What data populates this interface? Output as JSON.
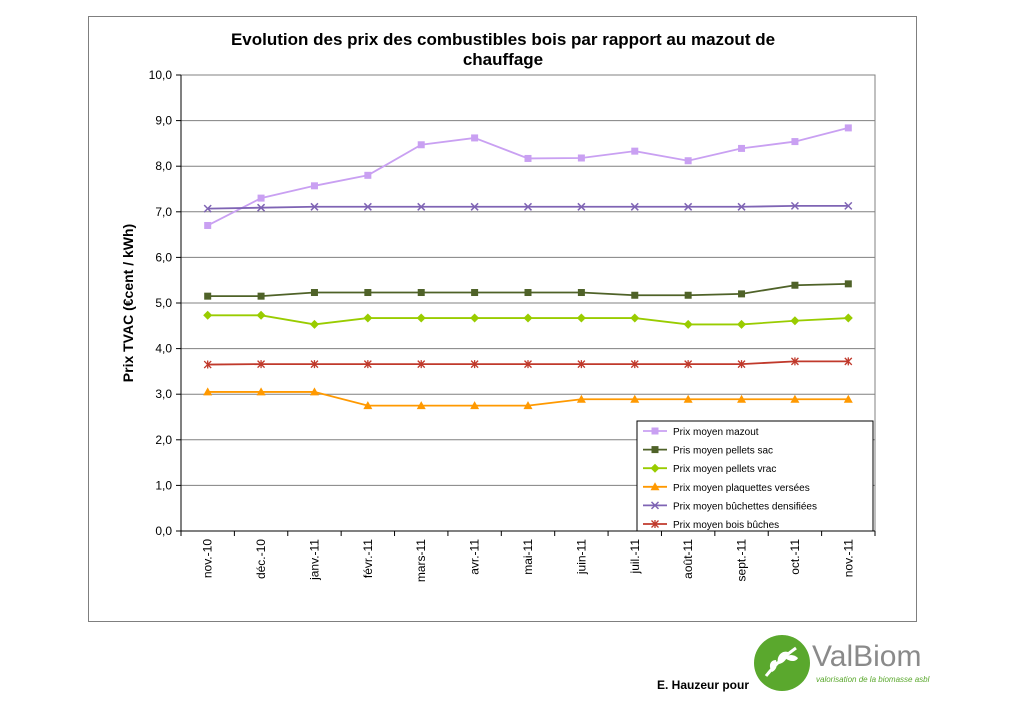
{
  "chart_data": {
    "type": "line",
    "title": "Evolution des prix des combustibles bois par rapport au mazout de chauffage",
    "title_lines": [
      "Evolution des prix des combustibles bois par rapport au mazout de",
      "chauffage"
    ],
    "xlabel": "",
    "ylabel": "Prix TVAC (€cent / kWh)",
    "ylim": [
      0,
      10
    ],
    "yticks": [
      "0,0",
      "1,0",
      "2,0",
      "3,0",
      "4,0",
      "5,0",
      "6,0",
      "7,0",
      "8,0",
      "9,0",
      "10,0"
    ],
    "categories": [
      "nov.-10",
      "déc.-10",
      "janv.-11",
      "févr.-11",
      "mars-11",
      "avr.-11",
      "mai-11",
      "juin-11",
      "juil.-11",
      "août-11",
      "sept.-11",
      "oct.-11",
      "nov.-11"
    ],
    "grid": true,
    "legend_position": "bottom-right",
    "series": [
      {
        "name": "Prix moyen mazout",
        "color": "#c9a0f2",
        "marker": "square",
        "values": [
          6.7,
          7.3,
          7.57,
          7.8,
          8.47,
          8.62,
          8.17,
          8.18,
          8.33,
          8.12,
          8.39,
          8.54,
          8.84
        ]
      },
      {
        "name": "Pris moyen pellets sac",
        "color": "#4f6228",
        "marker": "square",
        "values": [
          5.15,
          5.15,
          5.23,
          5.23,
          5.23,
          5.23,
          5.23,
          5.23,
          5.17,
          5.17,
          5.2,
          5.39,
          5.42
        ]
      },
      {
        "name": "Prix moyen pellets vrac",
        "color": "#99cc00",
        "marker": "diamond",
        "values": [
          4.73,
          4.73,
          4.53,
          4.67,
          4.67,
          4.67,
          4.67,
          4.67,
          4.67,
          4.53,
          4.53,
          4.61,
          4.67
        ]
      },
      {
        "name": "Prix moyen plaquettes versées",
        "color": "#ff9900",
        "marker": "triangle",
        "values": [
          3.05,
          3.05,
          3.05,
          2.75,
          2.75,
          2.75,
          2.75,
          2.89,
          2.89,
          2.89,
          2.89,
          2.89,
          2.89
        ]
      },
      {
        "name": "Prix moyen bûchettes densifiées",
        "color": "#7f64b4",
        "marker": "x",
        "values": [
          7.07,
          7.09,
          7.11,
          7.11,
          7.11,
          7.11,
          7.11,
          7.11,
          7.11,
          7.11,
          7.11,
          7.13,
          7.13
        ]
      },
      {
        "name": "Prix moyen bois bûches",
        "color": "#c0392b",
        "marker": "star",
        "values": [
          3.65,
          3.66,
          3.66,
          3.66,
          3.66,
          3.66,
          3.66,
          3.66,
          3.66,
          3.66,
          3.66,
          3.72,
          3.72
        ]
      }
    ]
  },
  "footer": {
    "credit": "E. Hauzeur pour"
  },
  "logo": {
    "name": "ValBiom",
    "tagline": "valorisation de la biomasse asbl",
    "green": "#5aa82d",
    "gray": "#8a8a8a"
  }
}
